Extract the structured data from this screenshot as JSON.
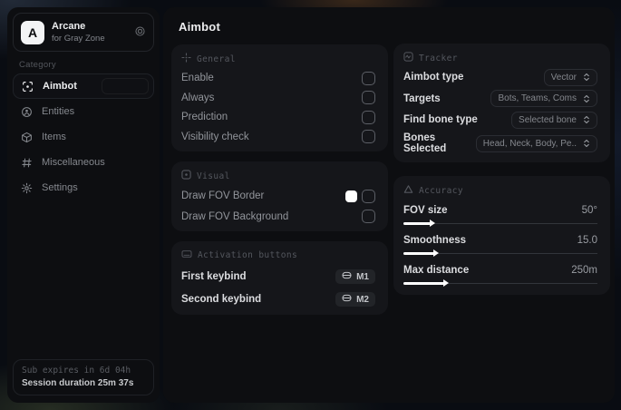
{
  "app": {
    "name": "Arcane",
    "subtitle": "for Gray Zone",
    "logo_letter": "A"
  },
  "sidebar": {
    "category_label": "Category",
    "items": [
      {
        "label": "Aimbot",
        "active": true
      },
      {
        "label": "Entities",
        "active": false
      },
      {
        "label": "Items",
        "active": false
      },
      {
        "label": "Miscellaneous",
        "active": false
      },
      {
        "label": "Settings",
        "active": false
      }
    ],
    "footer": {
      "line1": "Sub expires in 6d 04h",
      "line2": "Session duration 25m 37s"
    }
  },
  "main": {
    "title": "Aimbot",
    "general": {
      "header": "General",
      "rows": [
        {
          "label": "Enable",
          "checked": false
        },
        {
          "label": "Always",
          "checked": false
        },
        {
          "label": "Prediction",
          "checked": false
        },
        {
          "label": "Visibility check",
          "checked": false
        }
      ]
    },
    "visual": {
      "header": "Visual",
      "rows": [
        {
          "label": "Draw FOV Border",
          "swatch_color": "#ffffff",
          "checked": false
        },
        {
          "label": "Draw FOV Background",
          "checked": false
        }
      ]
    },
    "activation": {
      "header": "Activation buttons",
      "rows": [
        {
          "label": "First keybind",
          "key": "M1"
        },
        {
          "label": "Second keybind",
          "key": "M2"
        }
      ]
    },
    "tracker": {
      "header": "Tracker",
      "rows": [
        {
          "label": "Aimbot type",
          "value": "Vector"
        },
        {
          "label": "Targets",
          "value": "Bots, Teams, Coms"
        },
        {
          "label": "Find bone type",
          "value": "Selected bone"
        },
        {
          "label": "Bones Selected",
          "value": "Head, Neck, Body, Pe.."
        }
      ]
    },
    "accuracy": {
      "header": "Accuracy",
      "rows": [
        {
          "label": "FOV size",
          "value": "50°",
          "fill_pct": 14
        },
        {
          "label": "Smoothness",
          "value": "15.0",
          "fill_pct": 16
        },
        {
          "label": "Max distance",
          "value": "250m",
          "fill_pct": 21
        }
      ]
    }
  },
  "colors": {
    "accent": "#ffffff",
    "panel_bg": "#0d0e11",
    "card_bg": "#15161a"
  }
}
